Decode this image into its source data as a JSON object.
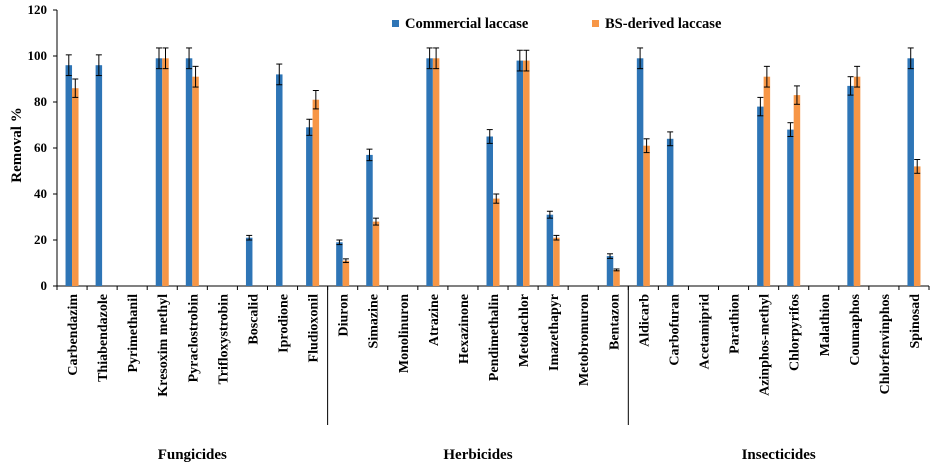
{
  "chart_data": {
    "type": "bar",
    "title": "",
    "xlabel": "",
    "ylabel": "Removal %",
    "ylim": [
      0,
      120
    ],
    "yticks": [
      0,
      20,
      40,
      60,
      80,
      100,
      120
    ],
    "grid": false,
    "legend_position": "top-center",
    "categories": [
      "Carbendazim",
      "Thiabendazole",
      "Pyrimethanil",
      "Kresoxim methyl",
      "Pyraclostrobin",
      "Trifloxystrobin",
      "Boscalid",
      "Iprodione",
      "Fludioxonil",
      "Diuron",
      "Simazine",
      "Monolinuron",
      "Atrazine",
      "Hexazinone",
      "Pendimethalin",
      "Metolachlor",
      "Imazethapyr",
      "Metobromuron",
      "Bentazon",
      "Aldicarb",
      "Carbofuran",
      "Acetamiprid",
      "Parathion",
      "Azinphos-methyl",
      "Chlorpyrifos",
      "Malathion",
      "Coumaphos",
      "Chlorfenvinphos",
      "Spinosad"
    ],
    "groups": [
      {
        "label": "Fungicides",
        "start": 0,
        "end": 8
      },
      {
        "label": "Herbicides",
        "start": 9,
        "end": 18
      },
      {
        "label": "Insecticides",
        "start": 19,
        "end": 28
      }
    ],
    "series": [
      {
        "name": "Commercial laccase",
        "color": "#2E75B6",
        "values": [
          96,
          96,
          0,
          99,
          99,
          0,
          21,
          92,
          69,
          19,
          57,
          0,
          99,
          0,
          65,
          98,
          31,
          0,
          13,
          99,
          64,
          0,
          0,
          78,
          68,
          0,
          87,
          0,
          99
        ],
        "errors": [
          4.5,
          4.5,
          0,
          4.5,
          4.5,
          0,
          1,
          4.5,
          3.5,
          1,
          2.5,
          0,
          4.5,
          0,
          3,
          4.5,
          1.5,
          0,
          1,
          4.5,
          3,
          0,
          0,
          4,
          3,
          0,
          4,
          0,
          4.5
        ]
      },
      {
        "name": "BS-derived laccase",
        "color": "#F79646",
        "values": [
          86,
          0,
          0,
          99,
          91,
          0,
          0,
          0,
          81,
          11,
          28,
          0,
          99,
          0,
          38,
          98,
          21,
          0,
          7,
          61,
          0,
          0,
          0,
          91,
          83,
          0,
          91,
          0,
          52
        ],
        "errors": [
          4,
          0,
          0,
          4.5,
          4.5,
          0,
          0,
          0,
          4,
          0.8,
          1.5,
          0,
          4.5,
          0,
          2,
          4.5,
          1,
          0,
          0.4,
          3,
          0,
          0,
          0,
          4.5,
          4,
          0,
          4.5,
          0,
          3
        ]
      }
    ]
  }
}
